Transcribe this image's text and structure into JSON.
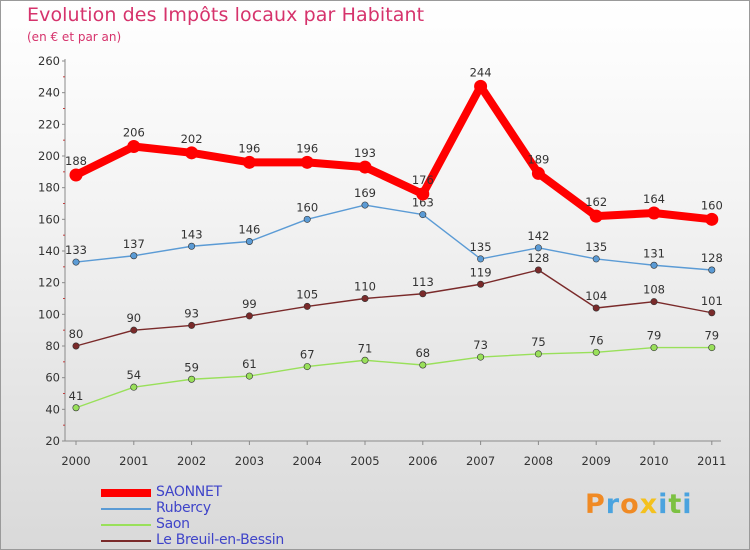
{
  "chart_data": {
    "type": "line",
    "title": "Evolution des Impôts locaux par Habitant",
    "subtitle": "(en € et par an)",
    "x": [
      "2000",
      "2001",
      "2002",
      "2003",
      "2004",
      "2005",
      "2006",
      "2007",
      "2008",
      "2009",
      "2010",
      "2011"
    ],
    "ylim": [
      20,
      260
    ],
    "yticks": [
      20,
      40,
      60,
      80,
      100,
      120,
      140,
      160,
      180,
      200,
      220,
      240,
      260
    ],
    "grid": false,
    "legend_position": "bottom-left",
    "series": [
      {
        "name": "SAONNET",
        "color": "#ff0000",
        "values": [
          188,
          206,
          202,
          196,
          196,
          193,
          176,
          244,
          189,
          162,
          164,
          160
        ]
      },
      {
        "name": "Rubercy",
        "color": "#5b9bd5",
        "values": [
          133,
          137,
          143,
          146,
          160,
          169,
          163,
          135,
          142,
          135,
          131,
          128
        ]
      },
      {
        "name": "Saon",
        "color": "#99e05a",
        "values": [
          41,
          54,
          59,
          61,
          67,
          71,
          68,
          73,
          75,
          76,
          79,
          79
        ]
      },
      {
        "name": "Le Breuil-en-Bessin",
        "color": "#7a2a2a",
        "values": [
          80,
          90,
          93,
          99,
          105,
          110,
          113,
          119,
          128,
          104,
          108,
          101
        ]
      }
    ]
  },
  "brand": {
    "logo_letters": [
      "P",
      "r",
      "o",
      "x",
      "i",
      "t",
      "i"
    ],
    "logo_colors": [
      "#f08a24",
      "#4aa3df",
      "#f08a24",
      "#f4c11e",
      "#4aa3df",
      "#7cc142",
      "#4aa3df"
    ]
  }
}
